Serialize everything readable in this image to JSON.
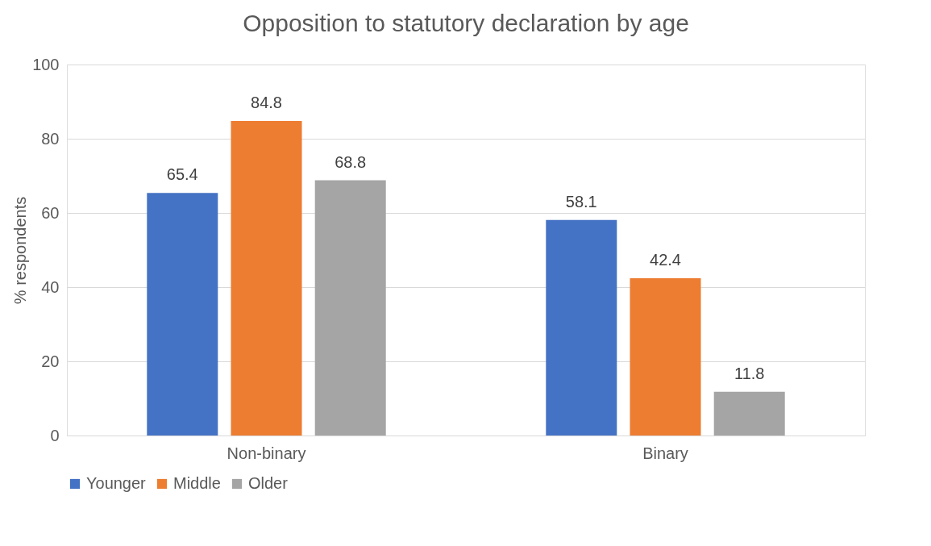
{
  "chart_data": {
    "type": "bar",
    "title": "Opposition to statutory declaration by age",
    "ylabel": "% respondents",
    "categories": [
      "Non-binary",
      "Binary"
    ],
    "series": [
      {
        "name": "Younger",
        "color": "#4472c4",
        "values": [
          65.4,
          58.1
        ]
      },
      {
        "name": "Middle",
        "color": "#ed7d31",
        "values": [
          84.8,
          42.4
        ]
      },
      {
        "name": "Older",
        "color": "#a5a5a5",
        "values": [
          68.8,
          11.8
        ]
      }
    ],
    "ylim": [
      0,
      100
    ],
    "yticks": [
      0,
      20,
      40,
      60,
      80,
      100
    ],
    "grid": "y",
    "legend": "bottom",
    "data_labels": true
  }
}
